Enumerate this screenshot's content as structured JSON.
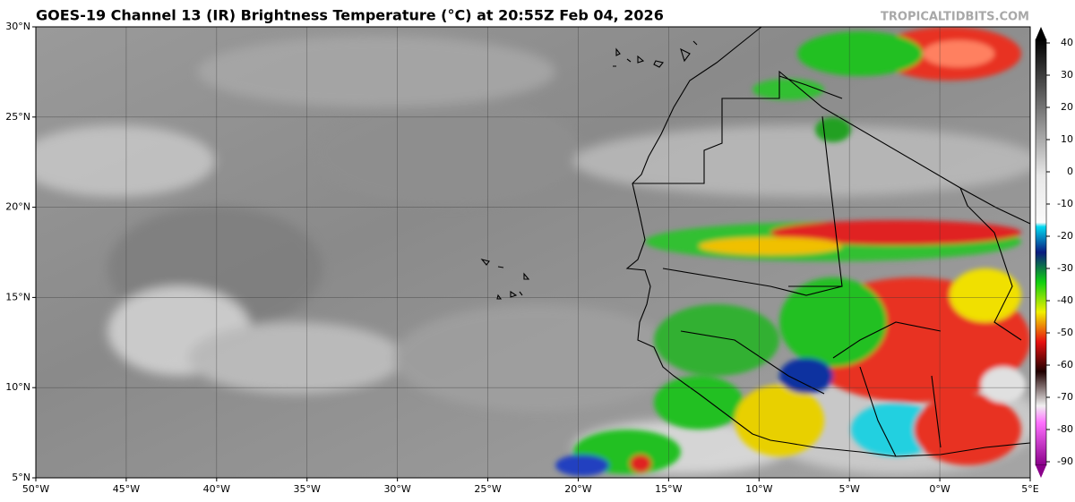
{
  "map": {
    "title": "GOES-19 Channel 13 (IR) Brightness Temperature (°C) at 20:55Z Feb 04, 2026",
    "watermark": "TROPICALTIDBITS.COM",
    "lonlim": [
      -50,
      5
    ],
    "latlim": [
      5,
      30
    ],
    "lonticks": [
      {
        "value": -50,
        "label": "50°W"
      },
      {
        "value": -45,
        "label": "45°W"
      },
      {
        "value": -40,
        "label": "40°W"
      },
      {
        "value": -35,
        "label": "35°W"
      },
      {
        "value": -30,
        "label": "30°W"
      },
      {
        "value": -25,
        "label": "25°W"
      },
      {
        "value": -20,
        "label": "20°W"
      },
      {
        "value": -15,
        "label": "15°W"
      },
      {
        "value": -10,
        "label": "10°W"
      },
      {
        "value": -5,
        "label": "5°W"
      },
      {
        "value": 0,
        "label": "0°W"
      },
      {
        "value": 5,
        "label": "5°E"
      }
    ],
    "latticks": [
      {
        "value": 30,
        "label": "30°N"
      },
      {
        "value": 25,
        "label": "25°N"
      },
      {
        "value": 20,
        "label": "20°N"
      },
      {
        "value": 15,
        "label": "15°N"
      },
      {
        "value": 10,
        "label": "10°N"
      },
      {
        "value": 5,
        "label": "5°N"
      }
    ],
    "grid": true,
    "colorbar": {
      "lim": [
        -95,
        45
      ],
      "ticks": [
        40,
        30,
        20,
        10,
        0,
        -10,
        -20,
        -30,
        -40,
        -50,
        -60,
        -70,
        -80,
        -90
      ]
    }
  }
}
